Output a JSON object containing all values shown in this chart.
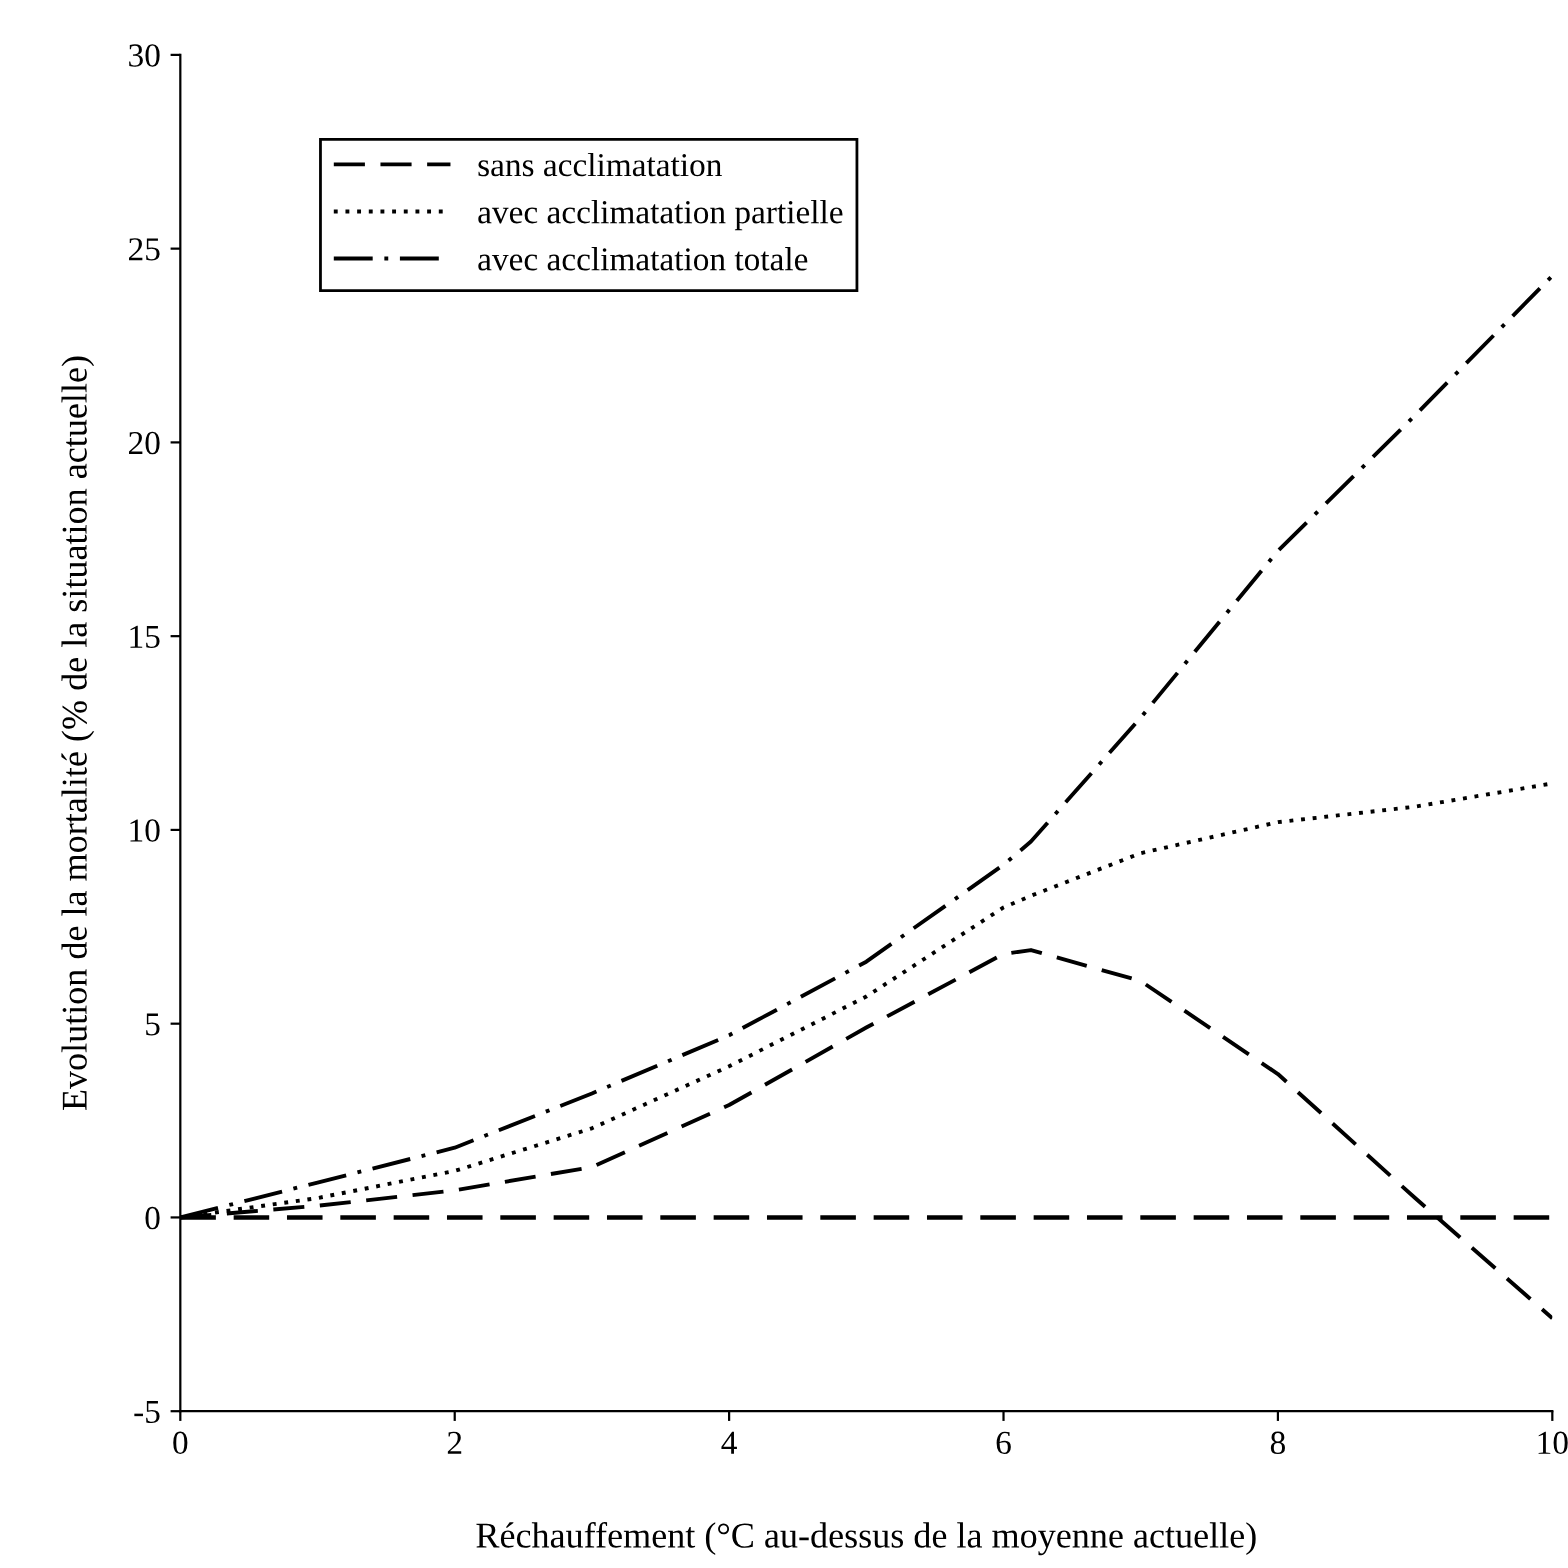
{
  "chart_data": {
    "type": "line",
    "xlabel": "Réchauffement (°C au-dessus de la moyenne actuelle)",
    "ylabel": "Evolution de la mortalité (% de la situation actuelle)",
    "x": [
      0,
      1,
      2,
      3,
      4,
      5,
      6,
      6.2,
      7,
      8,
      9,
      10
    ],
    "series": [
      {
        "name": "sans acclimatation",
        "color": "#000000",
        "line_style": "dashed",
        "values": [
          0,
          0.3,
          0.7,
          1.3,
          2.9,
          4.9,
          6.8,
          6.9,
          6.1,
          3.7,
          0.5,
          -2.6
        ]
      },
      {
        "name": "avec acclimatation partielle",
        "color": "#000000",
        "line_style": "dotted",
        "values": [
          0,
          0.5,
          1.2,
          2.3,
          3.9,
          5.7,
          8.0,
          8.3,
          9.4,
          10.2,
          10.6,
          11.2
        ]
      },
      {
        "name": "avec acclimatation totale",
        "color": "#000000",
        "line_style": "dashdot",
        "values": [
          0,
          0.9,
          1.8,
          3.2,
          4.7,
          6.6,
          9.1,
          9.7,
          12.9,
          17.2,
          20.7,
          24.3
        ]
      }
    ],
    "ref_lines": [
      {
        "axis": "y",
        "value": 0,
        "color": "#000000",
        "line_style": "dashed"
      }
    ],
    "xlim": [
      0,
      10
    ],
    "xticks": [
      0,
      2,
      4,
      6,
      8,
      10
    ],
    "ylim": [
      -5,
      30
    ],
    "yticks": [
      -5,
      0,
      5,
      10,
      15,
      20,
      25,
      30
    ],
    "grid": false,
    "legend": "top left"
  }
}
